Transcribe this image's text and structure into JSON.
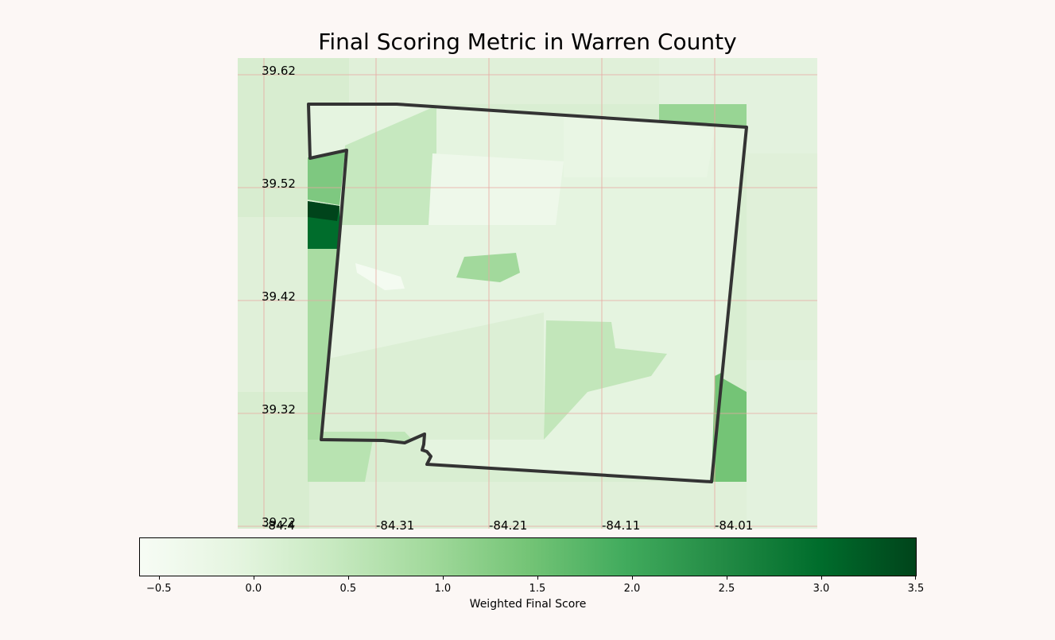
{
  "title": "Final Scoring Metric in Warren County",
  "map": {
    "lat_ticks": [
      "39.62",
      "39.52",
      "39.42",
      "39.32",
      "39.22"
    ],
    "lon_ticks": [
      "-84.4",
      "-84.31",
      "-84.21",
      "-84.11",
      "-84.01"
    ],
    "grid_color": "#e8a7a0",
    "boundary_color": "#333333"
  },
  "colorbar": {
    "label": "Weighted Final Score",
    "ticks": [
      "−0.5",
      "0.0",
      "0.5",
      "1.0",
      "1.5",
      "2.0",
      "2.5",
      "3.0",
      "3.5"
    ],
    "range": [
      -0.6,
      3.5
    ],
    "colormap": "Greens",
    "color_low": "#f7fcf5",
    "color_high": "#00441b"
  }
}
